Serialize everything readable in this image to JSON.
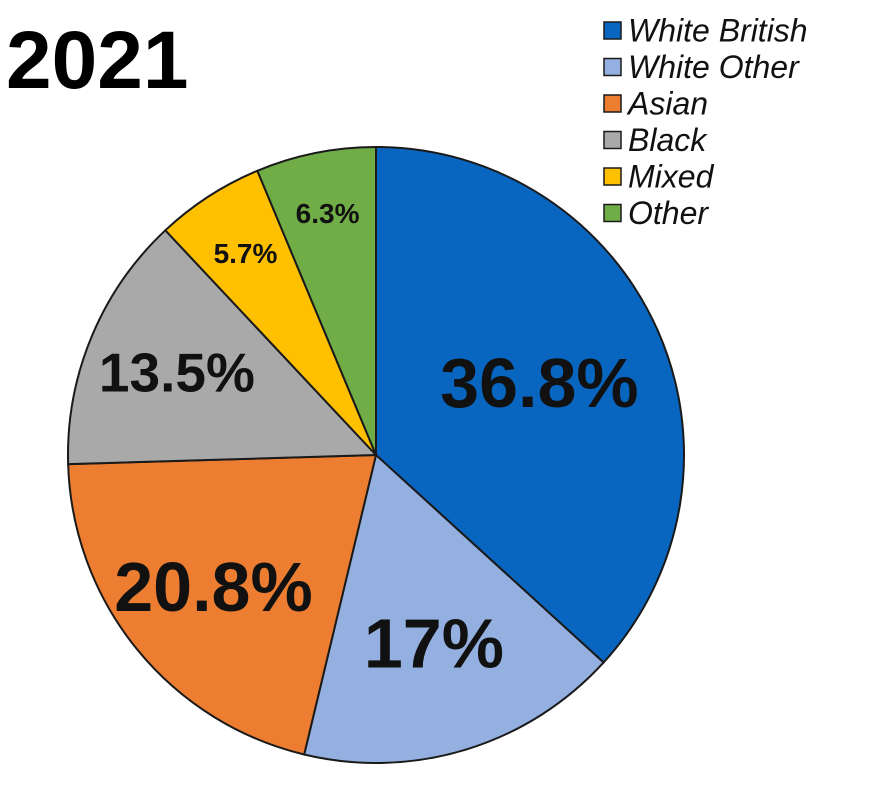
{
  "chart_data": {
    "type": "pie",
    "title": "2021",
    "start_angle": "top, clockwise",
    "legend_position": "top-right",
    "slices": [
      {
        "name": "White British",
        "value": 36.8,
        "label": "36.8%",
        "color": "#0866c1"
      },
      {
        "name": "White Other",
        "value": 17,
        "label": "17%",
        "color": "#94b0e0"
      },
      {
        "name": "Asian",
        "value": 20.8,
        "label": "20.8%",
        "color": "#ed7d31"
      },
      {
        "name": "Black",
        "value": 13.5,
        "label": "13.5%",
        "color": "#a9a9a9"
      },
      {
        "name": "Mixed",
        "value": 5.7,
        "label": "5.7%",
        "color": "#ffc000"
      },
      {
        "name": "Other",
        "value": 6.3,
        "label": "6.3%",
        "color": "#70ad47"
      }
    ]
  }
}
